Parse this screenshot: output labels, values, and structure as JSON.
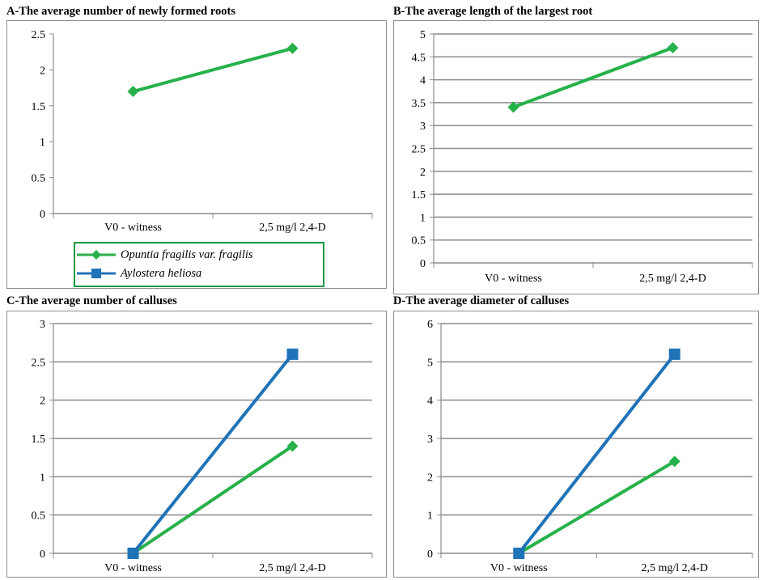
{
  "colors": {
    "opuntia": "#27b14a",
    "aylostera": "#1f73b8",
    "grid": "#8c8c8c"
  },
  "legend": [
    {
      "name": "Opuntia fragilis var. fragilis",
      "marker": "diamond",
      "color": "#27b14a"
    },
    {
      "name": "Aylostera heliosa",
      "marker": "square",
      "color": "#1f73b8"
    }
  ],
  "chart_data": [
    {
      "id": "A",
      "type": "line",
      "title": "A-The average number of newly formed roots",
      "categories": [
        "V0 - witness",
        "2,5 mg/l 2,4-D"
      ],
      "ylim": [
        0,
        2.5
      ],
      "yticks": [
        "0",
        "0.5",
        "1",
        "1.5",
        "2",
        "2.5"
      ],
      "grid": false,
      "legend_position": "bottom",
      "series": [
        {
          "name": "Opuntia fragilis var. fragilis",
          "values": [
            1.7,
            2.3
          ],
          "color": "#27b14a",
          "marker": "diamond"
        }
      ]
    },
    {
      "id": "B",
      "type": "line",
      "title": "B-The average length of the largest root",
      "categories": [
        "V0 - witness",
        "2,5 mg/l 2,4-D"
      ],
      "ylim": [
        0,
        5
      ],
      "yticks": [
        "0",
        "0.5",
        "1",
        "1.5",
        "2",
        "2.5",
        "3",
        "3.5",
        "4",
        "4.5",
        "5"
      ],
      "grid": true,
      "series": [
        {
          "name": "Opuntia fragilis var. fragilis",
          "values": [
            3.4,
            4.7
          ],
          "color": "#27b14a",
          "marker": "diamond"
        }
      ]
    },
    {
      "id": "C",
      "type": "line",
      "title": "C-The average number of calluses",
      "categories": [
        "V0 - witness",
        "2,5 mg/l 2,4-D"
      ],
      "ylim": [
        0,
        3
      ],
      "yticks": [
        "0",
        "0.5",
        "1",
        "1.5",
        "2",
        "2.5",
        "3"
      ],
      "grid": true,
      "series": [
        {
          "name": "Opuntia fragilis var. fragilis",
          "values": [
            0,
            1.4
          ],
          "color": "#27b14a",
          "marker": "diamond"
        },
        {
          "name": "Aylostera heliosa",
          "values": [
            0,
            2.6
          ],
          "color": "#1f73b8",
          "marker": "square"
        }
      ]
    },
    {
      "id": "D",
      "type": "line",
      "title": "D-The average diameter of calluses",
      "categories": [
        "V0 - witness",
        "2,5 mg/l 2,4-D"
      ],
      "ylim": [
        0,
        6
      ],
      "yticks": [
        "0",
        "1",
        "2",
        "3",
        "4",
        "5",
        "6"
      ],
      "grid": true,
      "series": [
        {
          "name": "Opuntia fragilis var. fragilis",
          "values": [
            0,
            2.4
          ],
          "color": "#27b14a",
          "marker": "diamond"
        },
        {
          "name": "Aylostera heliosa",
          "values": [
            0,
            5.2
          ],
          "color": "#1f73b8",
          "marker": "square"
        }
      ]
    }
  ]
}
